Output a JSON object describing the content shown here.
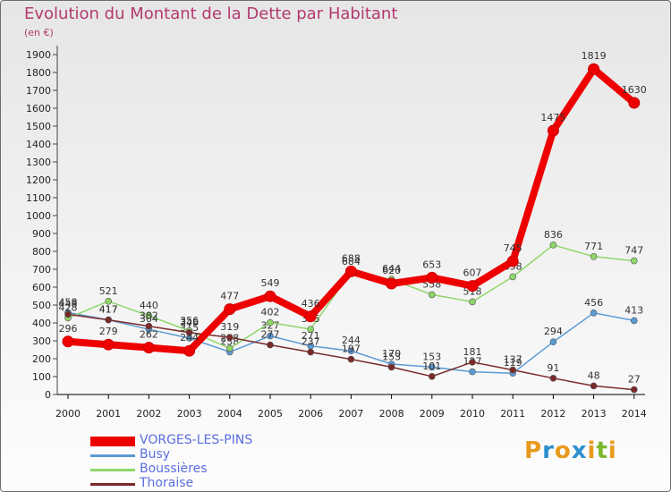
{
  "title": "Evolution du Montant de la Dette par Habitant",
  "subtitle": "(en €)",
  "logo": {
    "letters": [
      "P",
      "r",
      "o",
      "x",
      "i",
      "t",
      "i"
    ],
    "colors": [
      "#e89a1c",
      "#2e8fd0",
      "#e89a1c",
      "#2e8fd0",
      "#e89a1c",
      "#7cb82f",
      "#e89a1c"
    ]
  },
  "chart_data": {
    "type": "line",
    "categories": [
      "2000",
      "2001",
      "2002",
      "2003",
      "2004",
      "2005",
      "2006",
      "2007",
      "2008",
      "2009",
      "2010",
      "2011",
      "2012",
      "2013",
      "2014"
    ],
    "ylim": [
      0,
      1900
    ],
    "yticks": [
      "0",
      "100",
      "200",
      "300",
      "400",
      "500",
      "600",
      "700",
      "800",
      "900",
      "1000",
      "1100",
      "1200",
      "1300",
      "1400",
      "1500",
      "1600",
      "1700",
      "1800",
      "1900"
    ],
    "grid": false,
    "legend_position": "bottom-left",
    "series": [
      {
        "name": "VORGES-LES-PINS",
        "color": "#ee0000",
        "values": [
          296,
          279,
          262,
          244,
          477,
          549,
          436,
          688,
          620,
          653,
          607,
          745,
          1475,
          1819,
          1630
        ]
      },
      {
        "name": "Busy",
        "color": "#5b9ad5",
        "values": [
          458,
          417,
          364,
          315,
          238,
          327,
          271,
          244,
          170,
          153,
          127,
          119,
          294,
          456,
          413
        ]
      },
      {
        "name": "Boussières",
        "color": "#8fd66a",
        "values": [
          428,
          521,
          440,
          356,
          258,
          402,
          365,
          684,
          644,
          558,
          518,
          658,
          836,
          771,
          747
        ]
      },
      {
        "name": "Thoraise",
        "color": "#7b2a2a",
        "values": [
          448,
          417,
          382,
          346,
          319,
          277,
          237,
          197,
          153,
          101,
          181,
          137,
          91,
          48,
          27
        ]
      }
    ]
  }
}
